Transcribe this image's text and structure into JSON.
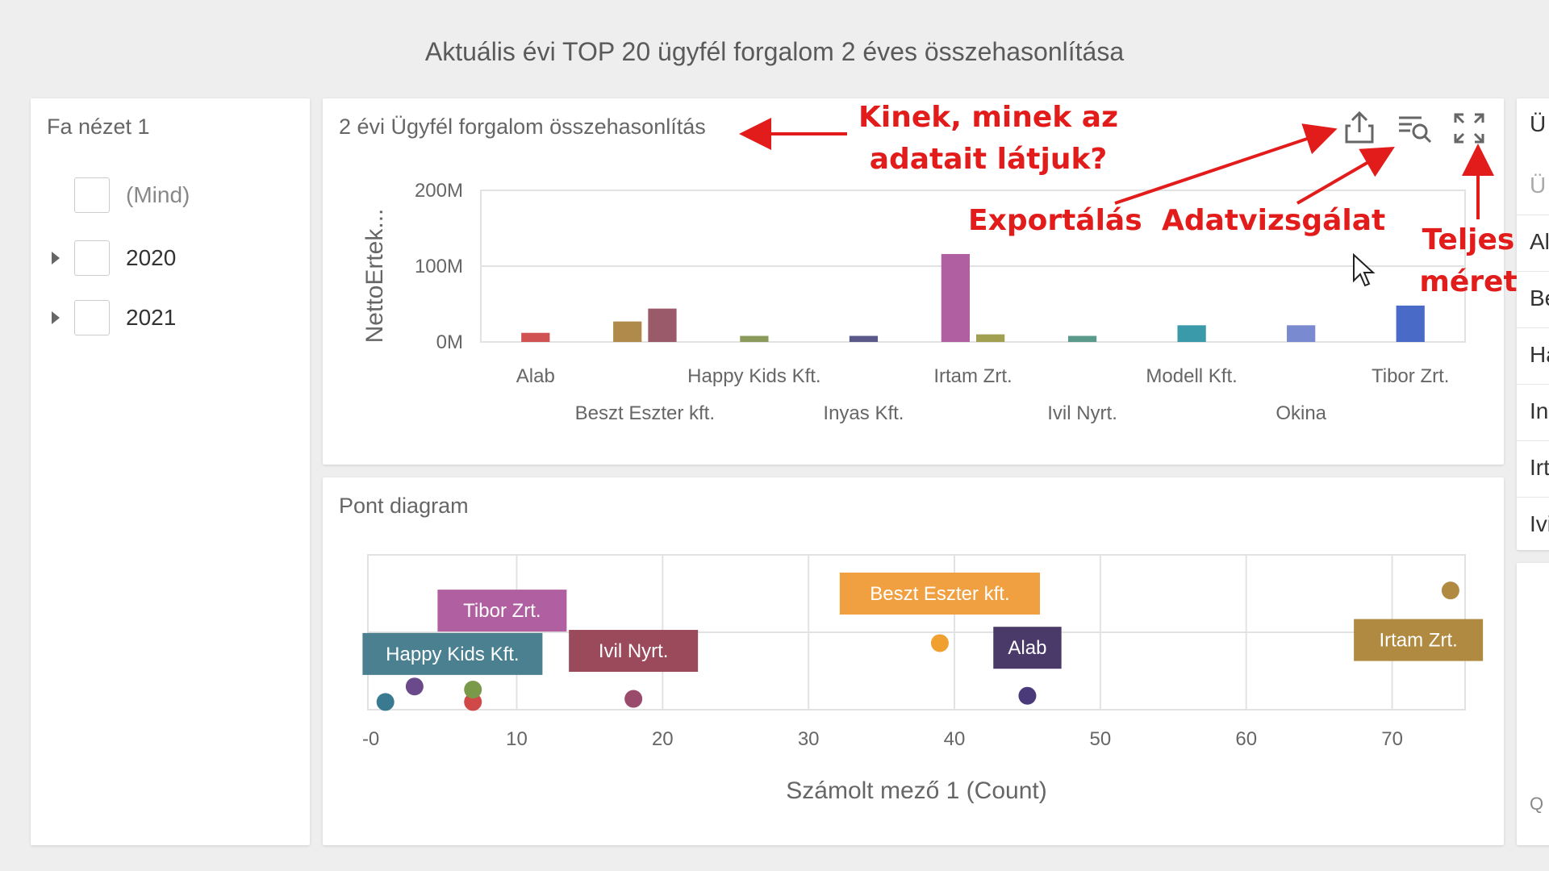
{
  "dashboard_title": "Aktuális évi TOP 20 ügyfél forgalom 2 éves összehasonlítása",
  "tree": {
    "title": "Fa nézet 1",
    "items": [
      {
        "label": "(Mind)",
        "expandable": false
      },
      {
        "label": "2020",
        "expandable": true
      },
      {
        "label": "2021",
        "expandable": true
      }
    ]
  },
  "bar_chart_panel": {
    "title": "2 évi Ügyfél forgalom összehasonlítás",
    "toolbar": [
      "export-icon",
      "inspect-data-icon",
      "fullscreen-icon"
    ]
  },
  "scatter_panel": {
    "title": "Pont diagram"
  },
  "right_panel": {
    "header": "Ü",
    "search": "Ü",
    "rows": [
      "Al",
      "Be",
      "Ha",
      "In",
      "Irt",
      "Ivi"
    ],
    "footer": "Q"
  },
  "annotations": {
    "who_line1": "Kinek, minek az",
    "who_line2": "adatait látjuk?",
    "export": "Exportálás",
    "inspect": "Adatvizsgálat",
    "full_line1": "Teljes",
    "full_line2": "méret"
  },
  "chart_data": [
    {
      "type": "bar",
      "ylabel": "NettoErtek...",
      "ylim": [
        0,
        200
      ],
      "yticks": [
        "0M",
        "100M",
        "200M"
      ],
      "categories": [
        "Alab",
        "Beszt Eszter kft.",
        "Happy Kids Kft.",
        "Inyas Kft.",
        "Irtam Zrt.",
        "Ivil Nyrt.",
        "Modell Kft.",
        "Okina",
        "Tibor Zrt."
      ],
      "bars": [
        {
          "category": "Alab",
          "value": 12,
          "color": "#d05252"
        },
        {
          "category": "Beszt Eszter kft.",
          "value": 27,
          "color": "#b08a4a"
        },
        {
          "category": "Beszt Eszter kft.",
          "value": 44,
          "color": "#9a5a6a"
        },
        {
          "category": "Happy Kids Kft.",
          "value": 8,
          "color": "#8a9a5a"
        },
        {
          "category": "Inyas Kft.",
          "value": 8,
          "color": "#5a5a8a"
        },
        {
          "category": "Irtam Zrt.",
          "value": 116,
          "color": "#b060a0"
        },
        {
          "category": "Irtam Zrt.",
          "value": 10,
          "color": "#a0a050"
        },
        {
          "category": "Ivil Nyrt.",
          "value": 8,
          "color": "#5a9a8a"
        },
        {
          "category": "Modell Kft.",
          "value": 22,
          "color": "#3a9aaa"
        },
        {
          "category": "Okina",
          "value": 22,
          "color": "#7a8ad0"
        },
        {
          "category": "Tibor Zrt.",
          "value": 48,
          "color": "#4a6ac8"
        }
      ]
    },
    {
      "type": "scatter",
      "xlabel": "Számolt mező 1 (Count)",
      "xlim": [
        -0.2,
        75
      ],
      "xticks": [
        "-0",
        "10",
        "20",
        "30",
        "40",
        "50",
        "60",
        "70"
      ],
      "points": [
        {
          "x": 1,
          "y": 0.05,
          "color": "#3a7a90"
        },
        {
          "x": 3,
          "y": 0.15,
          "color": "#6a4a8a"
        },
        {
          "x": 7,
          "y": 0.05,
          "color": "#d04848"
        },
        {
          "x": 7,
          "y": 0.13,
          "color": "#7a9a4a"
        },
        {
          "x": 18,
          "y": 0.07,
          "color": "#9a4a6a"
        },
        {
          "x": 39,
          "y": 0.43,
          "color": "#f0a030"
        },
        {
          "x": 45,
          "y": 0.09,
          "color": "#4a3a7a"
        },
        {
          "x": 74,
          "y": 0.77,
          "color": "#b08a40"
        }
      ],
      "labels": [
        {
          "text": "Tibor Zrt.",
          "x": 9,
          "y": 0.64,
          "color": "#b060a0"
        },
        {
          "text": "Happy Kids Kft.",
          "x": 5.6,
          "y": 0.36,
          "color": "#4a8090"
        },
        {
          "text": "Ivil Nyrt.",
          "x": 18,
          "y": 0.38,
          "color": "#9a4a5a"
        },
        {
          "text": "Beszt Eszter kft.",
          "x": 39,
          "y": 0.75,
          "color": "#f0a040"
        },
        {
          "text": "Alab",
          "x": 45,
          "y": 0.4,
          "color": "#4a3a6a"
        },
        {
          "text": "Irtam Zrt.",
          "x": 71.8,
          "y": 0.45,
          "color": "#b08a40"
        }
      ]
    }
  ]
}
